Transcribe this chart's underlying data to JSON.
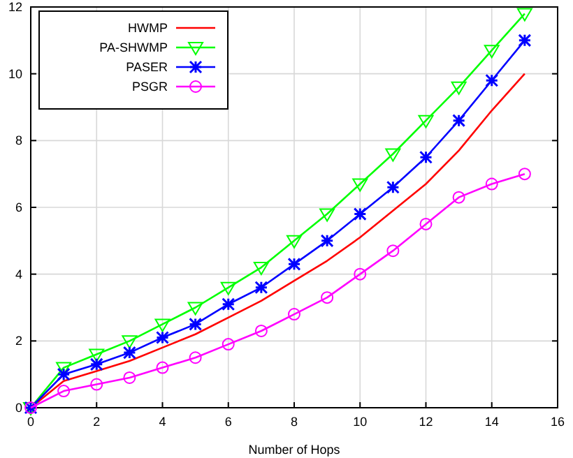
{
  "chart_data": {
    "type": "line",
    "xlabel": "Number of Hops",
    "x": [
      0,
      1,
      2,
      3,
      4,
      5,
      6,
      7,
      8,
      9,
      10,
      11,
      12,
      13,
      14,
      15
    ],
    "xlim": [
      0,
      16
    ],
    "xticks": [
      0,
      2,
      4,
      6,
      8,
      10,
      12,
      14,
      16
    ],
    "ylim": [
      0,
      12
    ],
    "yticks": [
      0,
      2,
      4,
      6,
      8,
      10,
      12
    ],
    "grid": true,
    "legend": "top left",
    "series": [
      {
        "name": "HWMP",
        "color": "#ff0000",
        "marker": "none",
        "values": [
          0,
          0.8,
          1.1,
          1.4,
          1.8,
          2.2,
          2.7,
          3.2,
          3.8,
          4.4,
          5.1,
          5.9,
          6.7,
          7.7,
          8.9,
          10.0
        ]
      },
      {
        "name": "PA-SHWMP",
        "color": "#00ff00",
        "marker": "triangle",
        "values": [
          0,
          1.2,
          1.6,
          2.0,
          2.5,
          3.0,
          3.6,
          4.2,
          5.0,
          5.8,
          6.7,
          7.6,
          8.6,
          9.6,
          10.7,
          11.8
        ]
      },
      {
        "name": "PASER",
        "color": "#0000ff",
        "marker": "cross",
        "values": [
          0,
          1.0,
          1.3,
          1.65,
          2.1,
          2.5,
          3.1,
          3.6,
          4.3,
          5.0,
          5.8,
          6.6,
          7.5,
          8.6,
          9.8,
          11.0
        ]
      },
      {
        "name": "PSGR",
        "color": "#ff00ff",
        "marker": "circle",
        "values": [
          0,
          0.5,
          0.7,
          0.9,
          1.2,
          1.5,
          1.9,
          2.3,
          2.8,
          3.3,
          4.0,
          4.7,
          5.5,
          6.3,
          6.7,
          7.0
        ]
      }
    ]
  }
}
